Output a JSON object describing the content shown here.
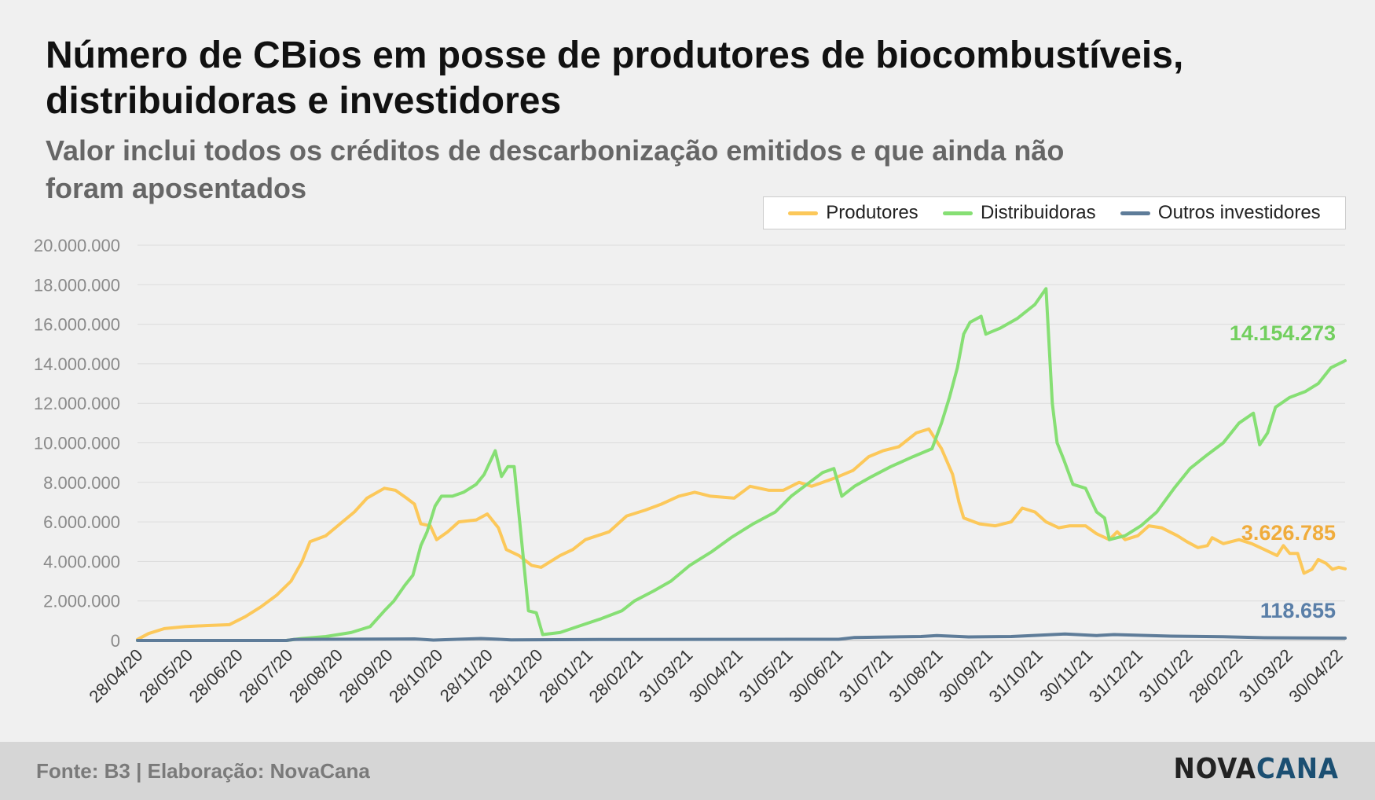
{
  "title": "Número de CBios em posse de produtores de biocombustíveis, distribuidoras e investidores",
  "subtitle": "Valor inclui todos os créditos de descarbonização emitidos e que ainda não foram aposentados",
  "footer": {
    "source": "Fonte: B3 | Elaboração: NovaCana",
    "logo_part1": "NOVA",
    "logo_part2": "CANA"
  },
  "chart_data": {
    "type": "line",
    "title": "Número de CBios em posse de produtores de biocombustíveis, distribuidoras e investidores",
    "ylim": [
      0,
      20000000
    ],
    "yticks": [
      0,
      2000000,
      4000000,
      6000000,
      8000000,
      10000000,
      12000000,
      14000000,
      16000000,
      18000000,
      20000000
    ],
    "ytick_labels": [
      "0",
      "2.000.000",
      "4.000.000",
      "6.000.000",
      "8.000.000",
      "10.000.000",
      "12.000.000",
      "14.000.000",
      "16.000.000",
      "18.000.000",
      "20.000.000"
    ],
    "x_labels": [
      "28/04/20",
      "28/05/20",
      "28/06/20",
      "28/07/20",
      "28/08/20",
      "28/09/20",
      "28/10/20",
      "28/11/20",
      "28/12/20",
      "28/01/21",
      "28/02/21",
      "31/03/21",
      "30/04/21",
      "31/05/21",
      "30/06/21",
      "31/07/21",
      "31/08/21",
      "30/09/21",
      "31/10/21",
      "30/11/21",
      "31/12/21",
      "31/01/22",
      "28/02/22",
      "31/03/22",
      "30/04/22"
    ],
    "x_range": [
      "2020-04-28",
      "2022-05-31"
    ],
    "grid": true,
    "legend_position": "top-right",
    "series": [
      {
        "name": "Produtores",
        "color": "#fcc85a",
        "end_label": "3.626.785",
        "end_label_color": "#f0ac3c",
        "points": [
          [
            "2020-04-28",
            50000
          ],
          [
            "2020-05-05",
            350000
          ],
          [
            "2020-05-15",
            600000
          ],
          [
            "2020-05-28",
            700000
          ],
          [
            "2020-06-10",
            750000
          ],
          [
            "2020-06-25",
            800000
          ],
          [
            "2020-07-05",
            1200000
          ],
          [
            "2020-07-15",
            1700000
          ],
          [
            "2020-07-25",
            2300000
          ],
          [
            "2020-08-03",
            3000000
          ],
          [
            "2020-08-10",
            4000000
          ],
          [
            "2020-08-15",
            5000000
          ],
          [
            "2020-08-25",
            5300000
          ],
          [
            "2020-09-03",
            5900000
          ],
          [
            "2020-09-12",
            6500000
          ],
          [
            "2020-09-20",
            7200000
          ],
          [
            "2020-10-01",
            7700000
          ],
          [
            "2020-10-08",
            7600000
          ],
          [
            "2020-10-15",
            7200000
          ],
          [
            "2020-10-20",
            6900000
          ],
          [
            "2020-10-24",
            5900000
          ],
          [
            "2020-10-30",
            5800000
          ],
          [
            "2020-11-03",
            5100000
          ],
          [
            "2020-11-10",
            5500000
          ],
          [
            "2020-11-17",
            6000000
          ],
          [
            "2020-11-28",
            6100000
          ],
          [
            "2020-12-05",
            6400000
          ],
          [
            "2020-12-12",
            5700000
          ],
          [
            "2020-12-17",
            4600000
          ],
          [
            "2020-12-25",
            4300000
          ],
          [
            "2021-01-02",
            3800000
          ],
          [
            "2021-01-08",
            3700000
          ],
          [
            "2021-01-20",
            4300000
          ],
          [
            "2021-01-28",
            4600000
          ],
          [
            "2021-02-05",
            5100000
          ],
          [
            "2021-02-20",
            5500000
          ],
          [
            "2021-03-03",
            6300000
          ],
          [
            "2021-03-15",
            6600000
          ],
          [
            "2021-03-25",
            6900000
          ],
          [
            "2021-04-05",
            7300000
          ],
          [
            "2021-04-15",
            7500000
          ],
          [
            "2021-04-25",
            7300000
          ],
          [
            "2021-05-10",
            7200000
          ],
          [
            "2021-05-20",
            7800000
          ],
          [
            "2021-06-01",
            7600000
          ],
          [
            "2021-06-10",
            7600000
          ],
          [
            "2021-06-20",
            8000000
          ],
          [
            "2021-06-28",
            7800000
          ],
          [
            "2021-07-05",
            8000000
          ],
          [
            "2021-07-12",
            8200000
          ],
          [
            "2021-07-24",
            8600000
          ],
          [
            "2021-08-03",
            9300000
          ],
          [
            "2021-08-12",
            9600000
          ],
          [
            "2021-08-22",
            9800000
          ],
          [
            "2021-09-02",
            10500000
          ],
          [
            "2021-09-10",
            10700000
          ],
          [
            "2021-09-18",
            9700000
          ],
          [
            "2021-09-25",
            8400000
          ],
          [
            "2021-09-29",
            7000000
          ],
          [
            "2021-10-02",
            6200000
          ],
          [
            "2021-10-12",
            5900000
          ],
          [
            "2021-10-22",
            5800000
          ],
          [
            "2021-11-01",
            6000000
          ],
          [
            "2021-11-08",
            6700000
          ],
          [
            "2021-11-16",
            6500000
          ],
          [
            "2021-11-23",
            6000000
          ],
          [
            "2021-12-01",
            5700000
          ],
          [
            "2021-12-08",
            5800000
          ],
          [
            "2021-12-18",
            5800000
          ],
          [
            "2021-12-25",
            5400000
          ],
          [
            "2022-01-02",
            5100000
          ],
          [
            "2022-01-07",
            5500000
          ],
          [
            "2022-01-12",
            5100000
          ],
          [
            "2022-01-20",
            5300000
          ],
          [
            "2022-01-27",
            5800000
          ],
          [
            "2022-02-04",
            5700000
          ],
          [
            "2022-02-14",
            5300000
          ],
          [
            "2022-02-20",
            5000000
          ],
          [
            "2022-02-27",
            4700000
          ],
          [
            "2022-03-05",
            4800000
          ],
          [
            "2022-03-08",
            5200000
          ],
          [
            "2022-03-15",
            4900000
          ],
          [
            "2022-03-25",
            5100000
          ],
          [
            "2022-04-02",
            4900000
          ],
          [
            "2022-04-10",
            4600000
          ],
          [
            "2022-04-18",
            4300000
          ],
          [
            "2022-04-22",
            4800000
          ],
          [
            "2022-04-26",
            4400000
          ],
          [
            "2022-05-01",
            4400000
          ],
          [
            "2022-05-05",
            3400000
          ],
          [
            "2022-05-10",
            3600000
          ],
          [
            "2022-05-14",
            4100000
          ],
          [
            "2022-05-19",
            3900000
          ],
          [
            "2022-05-23",
            3600000
          ],
          [
            "2022-05-27",
            3700000
          ],
          [
            "2022-05-31",
            3626785
          ]
        ]
      },
      {
        "name": "Distribuidoras",
        "color": "#86df74",
        "end_label": "14.154.273",
        "end_label_color": "#72cf5e",
        "points": [
          [
            "2020-04-28",
            0
          ],
          [
            "2020-07-31",
            0
          ],
          [
            "2020-08-10",
            100000
          ],
          [
            "2020-08-25",
            200000
          ],
          [
            "2020-09-10",
            400000
          ],
          [
            "2020-09-22",
            700000
          ],
          [
            "2020-10-01",
            1500000
          ],
          [
            "2020-10-07",
            2000000
          ],
          [
            "2020-10-14",
            2800000
          ],
          [
            "2020-10-19",
            3300000
          ],
          [
            "2020-10-24",
            4800000
          ],
          [
            "2020-10-28",
            5500000
          ],
          [
            "2020-11-02",
            6800000
          ],
          [
            "2020-11-06",
            7300000
          ],
          [
            "2020-11-13",
            7300000
          ],
          [
            "2020-11-20",
            7500000
          ],
          [
            "2020-11-28",
            7900000
          ],
          [
            "2020-12-03",
            8400000
          ],
          [
            "2020-12-10",
            9600000
          ],
          [
            "2020-12-14",
            8300000
          ],
          [
            "2020-12-18",
            8800000
          ],
          [
            "2020-12-22",
            8800000
          ],
          [
            "2020-12-27",
            4800000
          ],
          [
            "2020-12-31",
            1500000
          ],
          [
            "2021-01-05",
            1400000
          ],
          [
            "2021-01-09",
            300000
          ],
          [
            "2021-01-20",
            400000
          ],
          [
            "2021-01-31",
            700000
          ],
          [
            "2021-02-15",
            1100000
          ],
          [
            "2021-02-28",
            1500000
          ],
          [
            "2021-03-08",
            2000000
          ],
          [
            "2021-03-20",
            2500000
          ],
          [
            "2021-03-31",
            3000000
          ],
          [
            "2021-04-12",
            3800000
          ],
          [
            "2021-04-26",
            4500000
          ],
          [
            "2021-05-08",
            5200000
          ],
          [
            "2021-05-22",
            5900000
          ],
          [
            "2021-06-05",
            6500000
          ],
          [
            "2021-06-15",
            7300000
          ],
          [
            "2021-06-25",
            7900000
          ],
          [
            "2021-07-05",
            8500000
          ],
          [
            "2021-07-12",
            8700000
          ],
          [
            "2021-07-17",
            7300000
          ],
          [
            "2021-07-25",
            7800000
          ],
          [
            "2021-08-05",
            8300000
          ],
          [
            "2021-08-17",
            8800000
          ],
          [
            "2021-08-31",
            9300000
          ],
          [
            "2021-09-12",
            9700000
          ],
          [
            "2021-09-18",
            11000000
          ],
          [
            "2021-09-23",
            12300000
          ],
          [
            "2021-09-28",
            13800000
          ],
          [
            "2021-10-02",
            15500000
          ],
          [
            "2021-10-06",
            16100000
          ],
          [
            "2021-10-13",
            16400000
          ],
          [
            "2021-10-16",
            15500000
          ],
          [
            "2021-10-25",
            15800000
          ],
          [
            "2021-11-05",
            16300000
          ],
          [
            "2021-11-16",
            17000000
          ],
          [
            "2021-11-23",
            17800000
          ],
          [
            "2021-11-27",
            12000000
          ],
          [
            "2021-11-30",
            10000000
          ],
          [
            "2021-12-04",
            9200000
          ],
          [
            "2021-12-10",
            7900000
          ],
          [
            "2021-12-18",
            7700000
          ],
          [
            "2021-12-25",
            6500000
          ],
          [
            "2021-12-30",
            6200000
          ],
          [
            "2022-01-02",
            5100000
          ],
          [
            "2022-01-12",
            5300000
          ],
          [
            "2022-01-22",
            5800000
          ],
          [
            "2022-02-01",
            6500000
          ],
          [
            "2022-02-12",
            7700000
          ],
          [
            "2022-02-22",
            8700000
          ],
          [
            "2022-03-05",
            9400000
          ],
          [
            "2022-03-15",
            10000000
          ],
          [
            "2022-03-25",
            11000000
          ],
          [
            "2022-04-03",
            11500000
          ],
          [
            "2022-04-07",
            9900000
          ],
          [
            "2022-04-12",
            10500000
          ],
          [
            "2022-04-17",
            11800000
          ],
          [
            "2022-04-26",
            12300000
          ],
          [
            "2022-05-06",
            12600000
          ],
          [
            "2022-05-14",
            13000000
          ],
          [
            "2022-05-22",
            13800000
          ],
          [
            "2022-05-31",
            14154273
          ]
        ]
      },
      {
        "name": "Outros investidores",
        "color": "#5e7c99",
        "end_label": "118.655",
        "end_label_color": "#5a7fa8",
        "points": [
          [
            "2020-04-28",
            0
          ],
          [
            "2020-07-31",
            0
          ],
          [
            "2020-08-05",
            50000
          ],
          [
            "2020-10-20",
            80000
          ],
          [
            "2020-11-01",
            20000
          ],
          [
            "2020-12-01",
            100000
          ],
          [
            "2020-12-20",
            30000
          ],
          [
            "2021-02-20",
            50000
          ],
          [
            "2021-07-15",
            60000
          ],
          [
            "2021-07-25",
            150000
          ],
          [
            "2021-09-05",
            200000
          ],
          [
            "2021-09-15",
            250000
          ],
          [
            "2021-10-05",
            180000
          ],
          [
            "2021-11-01",
            200000
          ],
          [
            "2021-12-05",
            330000
          ],
          [
            "2021-12-25",
            250000
          ],
          [
            "2022-01-05",
            300000
          ],
          [
            "2022-02-10",
            220000
          ],
          [
            "2022-03-15",
            190000
          ],
          [
            "2022-04-10",
            140000
          ],
          [
            "2022-05-31",
            118655
          ]
        ]
      }
    ]
  }
}
